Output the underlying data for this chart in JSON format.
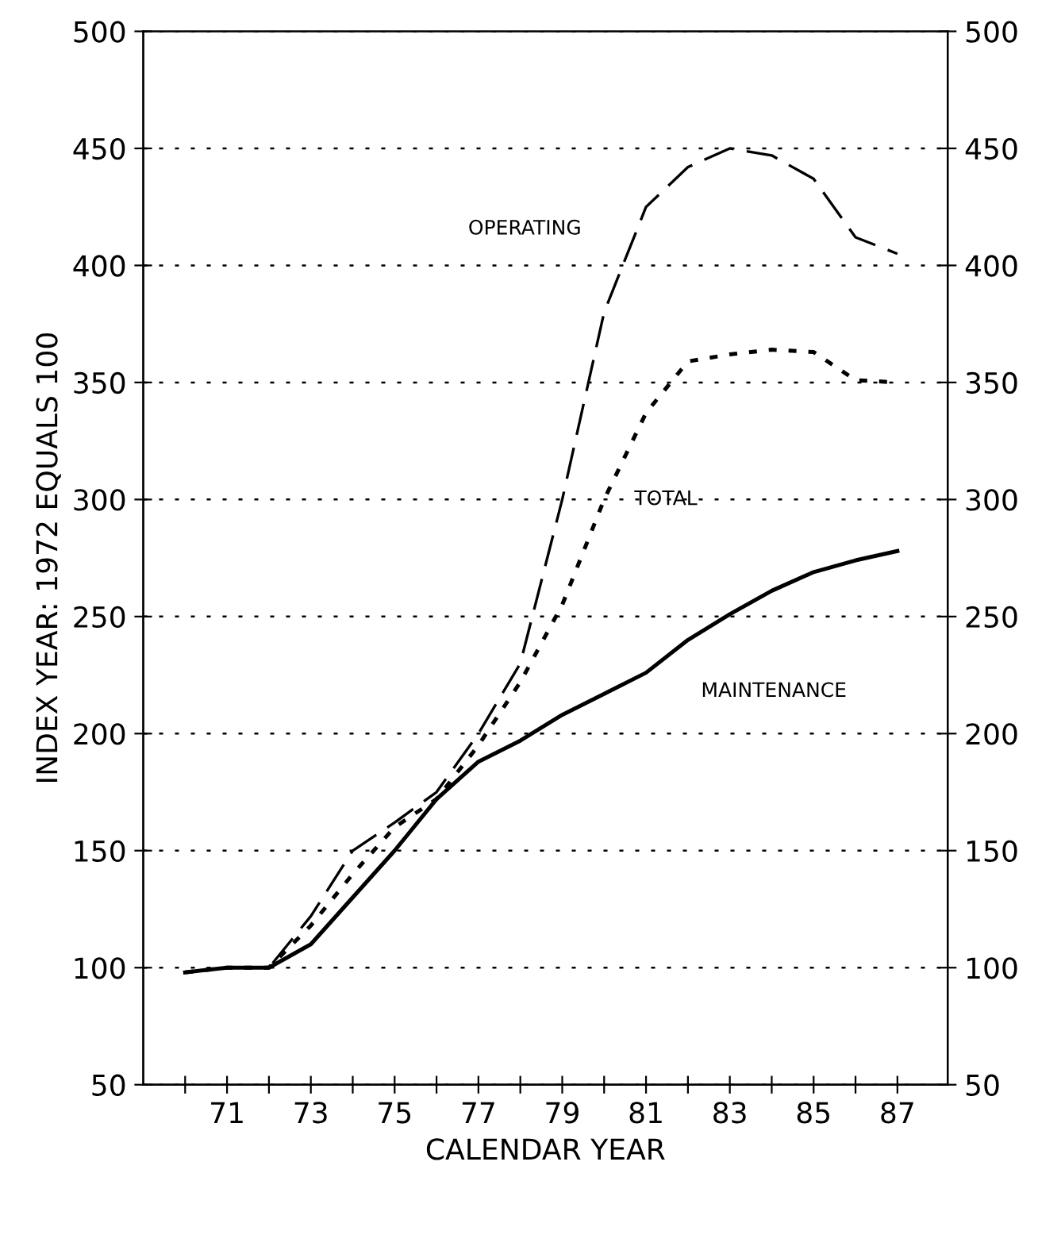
{
  "chart_data": {
    "type": "line",
    "xlabel": "CALENDAR YEAR",
    "ylabel": "INDEX YEAR: 1972 EQUALS 100",
    "x": [
      1970,
      1971,
      1972,
      1973,
      1974,
      1975,
      1976,
      1977,
      1978,
      1979,
      1980,
      1981,
      1982,
      1983,
      1984,
      1985,
      1986,
      1987
    ],
    "series": [
      {
        "name": "OPERATING",
        "color": "#000000",
        "line_style": "dashed",
        "values": [
          98,
          100,
          100,
          122,
          150,
          162,
          175,
          200,
          230,
          300,
          380,
          425,
          442,
          450,
          447,
          437,
          412,
          405
        ]
      },
      {
        "name": "TOTAL",
        "color": "#000000",
        "line_style": "dotted",
        "values": [
          98,
          100,
          100,
          118,
          140,
          160,
          172,
          195,
          222,
          255,
          300,
          337,
          359,
          362,
          364,
          363,
          351,
          350
        ]
      },
      {
        "name": "MAINTENANCE",
        "color": "#000000",
        "line_style": "solid",
        "values": [
          98,
          100,
          100,
          110,
          130,
          150,
          172,
          188,
          197,
          208,
          217,
          226,
          240,
          251,
          261,
          269,
          274,
          278
        ]
      }
    ],
    "xlim": [
      1969,
      1988.2
    ],
    "xticks": [
      {
        "value": 1970,
        "label": null
      },
      {
        "value": 1971,
        "label": "71"
      },
      {
        "value": 1972,
        "label": null
      },
      {
        "value": 1973,
        "label": "73"
      },
      {
        "value": 1974,
        "label": null
      },
      {
        "value": 1975,
        "label": "75"
      },
      {
        "value": 1976,
        "label": null
      },
      {
        "value": 1977,
        "label": "77"
      },
      {
        "value": 1978,
        "label": null
      },
      {
        "value": 1979,
        "label": "79"
      },
      {
        "value": 1980,
        "label": null
      },
      {
        "value": 1981,
        "label": "81"
      },
      {
        "value": 1982,
        "label": null
      },
      {
        "value": 1983,
        "label": "83"
      },
      {
        "value": 1984,
        "label": null
      },
      {
        "value": 1985,
        "label": "85"
      },
      {
        "value": 1986,
        "label": null
      },
      {
        "value": 1987,
        "label": "87"
      }
    ],
    "ylim": [
      50,
      500
    ],
    "yticks": [
      50,
      100,
      150,
      200,
      250,
      300,
      350,
      400,
      450,
      500
    ],
    "y2lim": [
      50,
      500
    ],
    "y2ticks": [
      50,
      100,
      150,
      200,
      250,
      300,
      350,
      400,
      450,
      500
    ],
    "grid": "y",
    "marker": "none"
  }
}
